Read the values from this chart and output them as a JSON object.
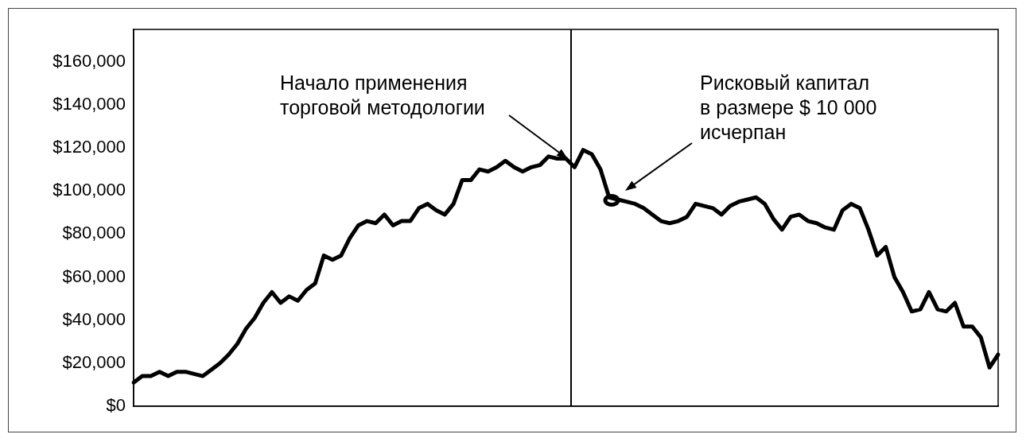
{
  "chart_data": {
    "type": "line",
    "categories": [
      null,
      null,
      null,
      null,
      null,
      null,
      null,
      null,
      null,
      null,
      null,
      null,
      null,
      null,
      null,
      null,
      null,
      null,
      null,
      null,
      null,
      null,
      null,
      null,
      null,
      null,
      null,
      null,
      null,
      null,
      null,
      null,
      null,
      null,
      null,
      null,
      null,
      null,
      null,
      null,
      null,
      null,
      null,
      null,
      null,
      null,
      null,
      null,
      null,
      null,
      null,
      null,
      null,
      null,
      null,
      null,
      null,
      null,
      null,
      null,
      null,
      null,
      null,
      null,
      null,
      null,
      null,
      null,
      null,
      null,
      null,
      null,
      null,
      null,
      null,
      null,
      null,
      null,
      null,
      null,
      null,
      null,
      null,
      null,
      null,
      null,
      null,
      null,
      null,
      null,
      null,
      null,
      null,
      null,
      null,
      null,
      null,
      null,
      null,
      null,
      null
    ],
    "series": [
      {
        "color": "#000000",
        "values": [
          11000,
          14000,
          14000,
          16000,
          14000,
          16000,
          16000,
          15000,
          14000,
          17000,
          20000,
          24000,
          29000,
          36000,
          41000,
          48000,
          53000,
          48000,
          51000,
          49000,
          54000,
          57000,
          70000,
          68000,
          70000,
          78000,
          84000,
          86000,
          85000,
          89000,
          84000,
          86000,
          86000,
          92000,
          94000,
          91000,
          89000,
          94000,
          105000,
          105000,
          110000,
          109000,
          111000,
          114000,
          111000,
          109000,
          111000,
          112000,
          116000,
          115000,
          115000,
          111000,
          119000,
          117000,
          110000,
          97000,
          96000,
          95000,
          94000,
          92000,
          89000,
          86000,
          85000,
          86000,
          88000,
          94000,
          93000,
          92000,
          89000,
          93000,
          95000,
          96000,
          97000,
          94000,
          87000,
          82000,
          88000,
          89000,
          86000,
          85000,
          83000,
          82000,
          91000,
          94000,
          92000,
          82000,
          70000,
          74000,
          60000,
          53000,
          44000,
          45000,
          53000,
          45000,
          44000,
          48000,
          37000,
          37000,
          32000,
          18000,
          24000
        ]
      }
    ],
    "ylim": [
      0,
      175000
    ],
    "yticks": [
      {
        "value": 0,
        "label": "$0"
      },
      {
        "value": 20000,
        "label": "$20,000"
      },
      {
        "value": 40000,
        "label": "$40,000"
      },
      {
        "value": 60000,
        "label": "$60,000"
      },
      {
        "value": 80000,
        "label": "$80,000"
      },
      {
        "value": 100000,
        "label": "$100,000"
      },
      {
        "value": 120000,
        "label": "$120,000"
      },
      {
        "value": 140000,
        "label": "$140,000"
      },
      {
        "value": 160000,
        "label": "$160,000"
      }
    ],
    "tick_labels": "y",
    "grid": false,
    "legend": false,
    "marker": "none",
    "line_style": "solid",
    "annotations": [
      "Начало применения\nторговой методологии",
      "Рисковый капитал\nв размере $ 10 000\nисчерпан"
    ]
  }
}
